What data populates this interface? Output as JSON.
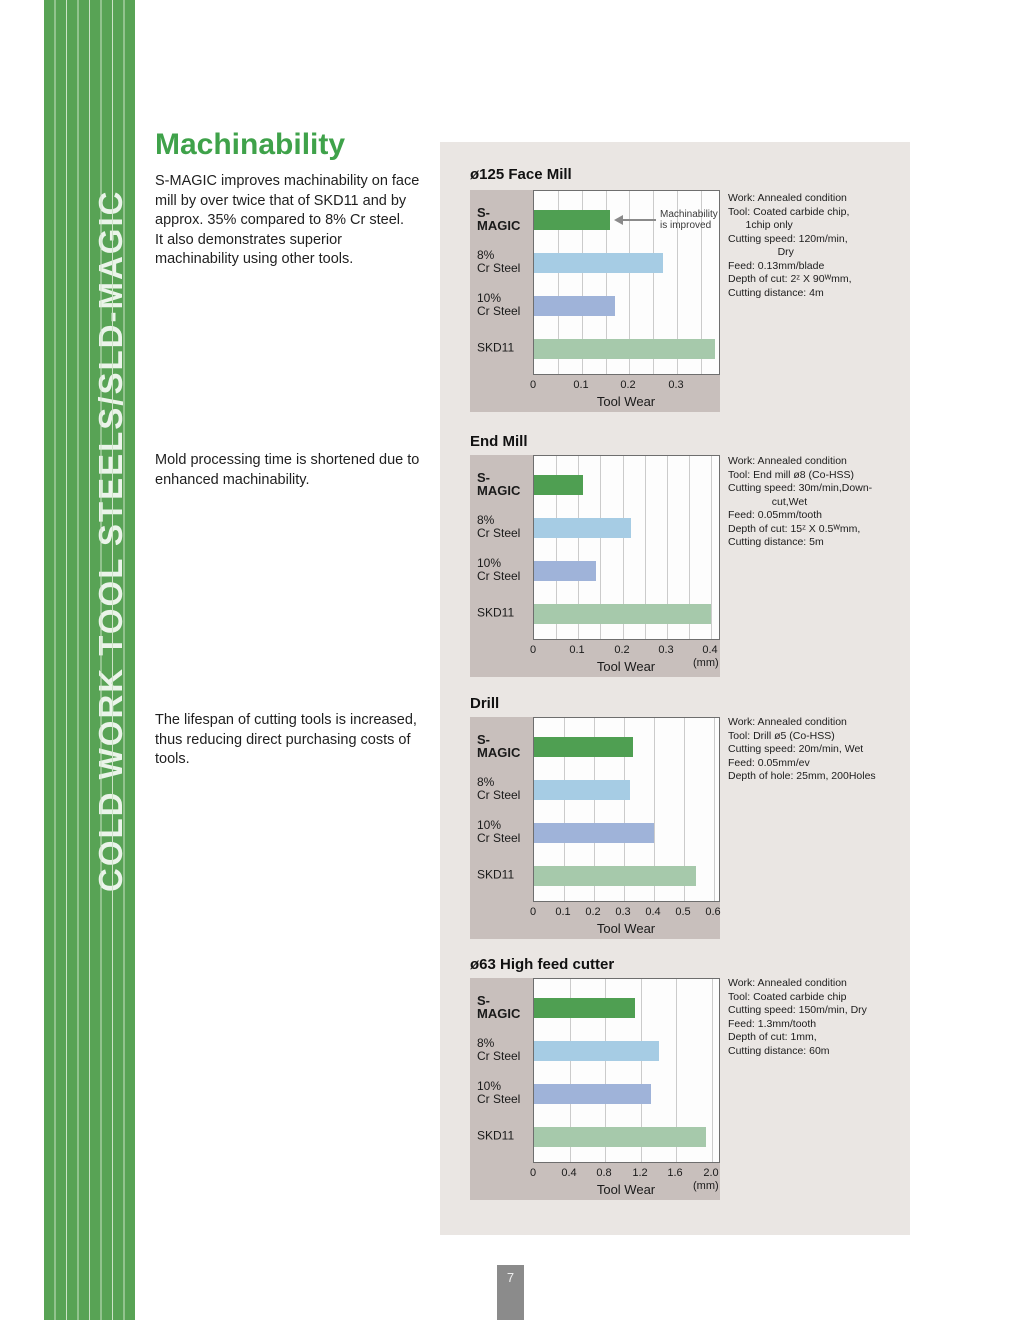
{
  "sidebar": {
    "vertical_text": "COLD WORK TOOL STEELS/SLD-MAGIC"
  },
  "intro": {
    "title": "Machinability",
    "paragraph1": "S-MAGIC  improves machinability on face\nmill by over twice that of SKD11 and by\napprox. 35% compared to 8% Cr steel.\nIt also demonstrates superior\nmachinability using other tools.",
    "paragraph2": "Mold processing time is shortened due to\nenhanced machinability.",
    "paragraph3": "The lifespan of cutting tools is increased,\nthus reducing direct purchasing costs of\ntools."
  },
  "footer": {
    "page_number": "7"
  },
  "bar_colors": [
    "#4f9f52",
    "#a6cce4",
    "#9fb3d9",
    "#a6c9ab"
  ],
  "chart_data": [
    {
      "type": "bar",
      "title": "ø125 Face Mill",
      "categories": [
        "S-MAGIC",
        "8%\nCr Steel",
        "10%\nCr Steel",
        "SKD11"
      ],
      "values": [
        0.16,
        0.27,
        0.17,
        0.38
      ],
      "xlim": [
        0,
        0.39
      ],
      "ticks": [
        0,
        0.1,
        0.2,
        0.3
      ],
      "tick_labels": [
        "0",
        "0.1",
        "0.2",
        "0.3"
      ],
      "grid_step": 0.05,
      "xlabel": "Tool Wear",
      "unit": "",
      "annotation": "Machinability\nis improved",
      "conditions": "Work: Annealed condition\nTool: Coated carbide chip,\n      1chip only\nCutting speed: 120m/min,\n                 Dry\nFeed: 0.13mm/blade\nDepth of cut: 2ᶻ X 90ᵂmm,\nCutting distance: 4m"
    },
    {
      "type": "bar",
      "title": "End Mill",
      "categories": [
        "S-MAGIC",
        "8%\nCr Steel",
        "10%\nCr Steel",
        "SKD11"
      ],
      "values": [
        0.11,
        0.22,
        0.14,
        0.4
      ],
      "xlim": [
        0,
        0.42
      ],
      "ticks": [
        0,
        0.1,
        0.2,
        0.3,
        0.4
      ],
      "tick_labels": [
        "0",
        "0.1",
        "0.2",
        "0.3",
        "0.4"
      ],
      "grid_step": 0.05,
      "xlabel": "Tool Wear",
      "unit": "(mm)",
      "annotation": "",
      "conditions": "Work: Annealed condition\nTool: End mill ø8 (Co-HSS)\nCutting speed: 30m/min,Down-\n               cut,Wet\nFeed: 0.05mm/tooth\nDepth of cut: 15ᶻ X 0.5ᵂmm,\nCutting distance: 5m"
    },
    {
      "type": "bar",
      "title": "Drill",
      "categories": [
        "S-MAGIC",
        "8%\nCr Steel",
        "10%\nCr Steel",
        "SKD11"
      ],
      "values": [
        0.33,
        0.32,
        0.4,
        0.54
      ],
      "xlim": [
        0,
        0.62
      ],
      "ticks": [
        0,
        0.1,
        0.2,
        0.3,
        0.4,
        0.5,
        0.6
      ],
      "tick_labels": [
        "0",
        "0.1",
        "0.2",
        "0.3",
        "0.4",
        "0.5",
        "0.6"
      ],
      "grid_step": 0.1,
      "xlabel": "Tool Wear",
      "unit": "",
      "annotation": "",
      "conditions": "Work: Annealed condition\nTool: Drill ø5 (Co-HSS)\nCutting speed: 20m/min, Wet\nFeed: 0.05mm/ev\nDepth of hole: 25mm, 200Holes"
    },
    {
      "type": "bar",
      "title": "ø63 High feed cutter",
      "categories": [
        "S-MAGIC",
        "8%\nCr Steel",
        "10%\nCr Steel",
        "SKD11"
      ],
      "values": [
        1.14,
        1.4,
        1.31,
        1.93
      ],
      "xlim": [
        0,
        2.09
      ],
      "ticks": [
        0,
        0.4,
        0.8,
        1.2,
        1.6,
        2.0
      ],
      "tick_labels": [
        "0",
        "0.4",
        "0.8",
        "1.2",
        "1.6",
        "2.0"
      ],
      "grid_step": 0.4,
      "xlabel": "Tool Wear",
      "unit": "(mm)",
      "annotation": "",
      "conditions": "Work: Annealed condition\nTool: Coated carbide chip\nCutting speed: 150m/min, Dry\nFeed: 1.3mm/tooth\nDepth of cut: 1mm,\nCutting distance: 60m"
    }
  ]
}
